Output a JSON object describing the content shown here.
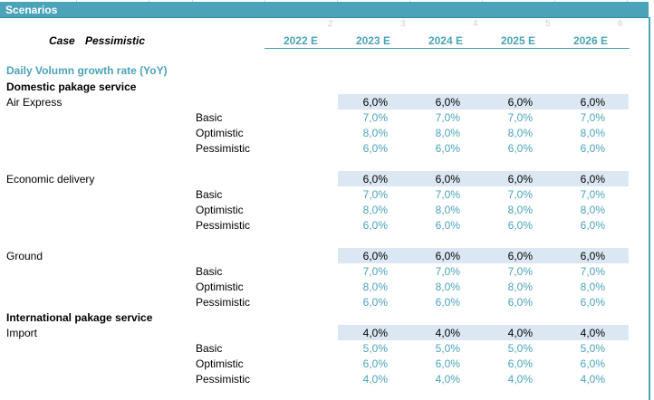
{
  "sheet": {
    "title": "Scenarios",
    "column_numbers": [
      "2",
      "3",
      "4",
      "5",
      "6"
    ],
    "case_label": "Case",
    "case_value": "Pessimistic",
    "years": [
      "2022 E",
      "2023 E",
      "2024 E",
      "2025 E",
      "2026 E"
    ],
    "section_title": "Daily Volumn growth rate (YoY)",
    "groups": [
      {
        "title": "Domestic pakage service",
        "items": [
          {
            "label": "Air Express",
            "main": [
              "6,0%",
              "6,0%",
              "6,0%",
              "6,0%"
            ],
            "scenarios": [
              {
                "label": "Basic",
                "values": [
                  "7,0%",
                  "7,0%",
                  "7,0%",
                  "7,0%"
                ]
              },
              {
                "label": "Optimistic",
                "values": [
                  "8,0%",
                  "8,0%",
                  "8,0%",
                  "8,0%"
                ]
              },
              {
                "label": "Pessimistic",
                "values": [
                  "6,0%",
                  "6,0%",
                  "6,0%",
                  "6,0%"
                ]
              }
            ]
          },
          {
            "label": "Economic delivery",
            "main": [
              "6,0%",
              "6,0%",
              "6,0%",
              "6,0%"
            ],
            "scenarios": [
              {
                "label": "Basic",
                "values": [
                  "7,0%",
                  "7,0%",
                  "7,0%",
                  "7,0%"
                ]
              },
              {
                "label": "Optimistic",
                "values": [
                  "8,0%",
                  "8,0%",
                  "8,0%",
                  "8,0%"
                ]
              },
              {
                "label": "Pessimistic",
                "values": [
                  "6,0%",
                  "6,0%",
                  "6,0%",
                  "6,0%"
                ]
              }
            ]
          },
          {
            "label": "Ground",
            "main": [
              "6,0%",
              "6,0%",
              "6,0%",
              "6,0%"
            ],
            "scenarios": [
              {
                "label": "Basic",
                "values": [
                  "7,0%",
                  "7,0%",
                  "7,0%",
                  "7,0%"
                ]
              },
              {
                "label": "Optimistic",
                "values": [
                  "8,0%",
                  "8,0%",
                  "8,0%",
                  "8,0%"
                ]
              },
              {
                "label": "Pessimistic",
                "values": [
                  "6,0%",
                  "6,0%",
                  "6,0%",
                  "6,0%"
                ]
              }
            ]
          }
        ]
      },
      {
        "title": "International pakage service",
        "items": [
          {
            "label": "Import",
            "main": [
              "4,0%",
              "4,0%",
              "4,0%",
              "4,0%"
            ],
            "scenarios": [
              {
                "label": "Basic",
                "values": [
                  "5,0%",
                  "5,0%",
                  "5,0%",
                  "5,0%"
                ]
              },
              {
                "label": "Optimistic",
                "values": [
                  "6,0%",
                  "6,0%",
                  "6,0%",
                  "6,0%"
                ]
              },
              {
                "label": "Pessimistic",
                "values": [
                  "4,0%",
                  "4,0%",
                  "4,0%",
                  "4,0%"
                ]
              }
            ]
          }
        ]
      }
    ],
    "colors": {
      "accent": "#4aa3b8",
      "highlight_band": "#dbe8f3",
      "text": "#000000"
    }
  }
}
